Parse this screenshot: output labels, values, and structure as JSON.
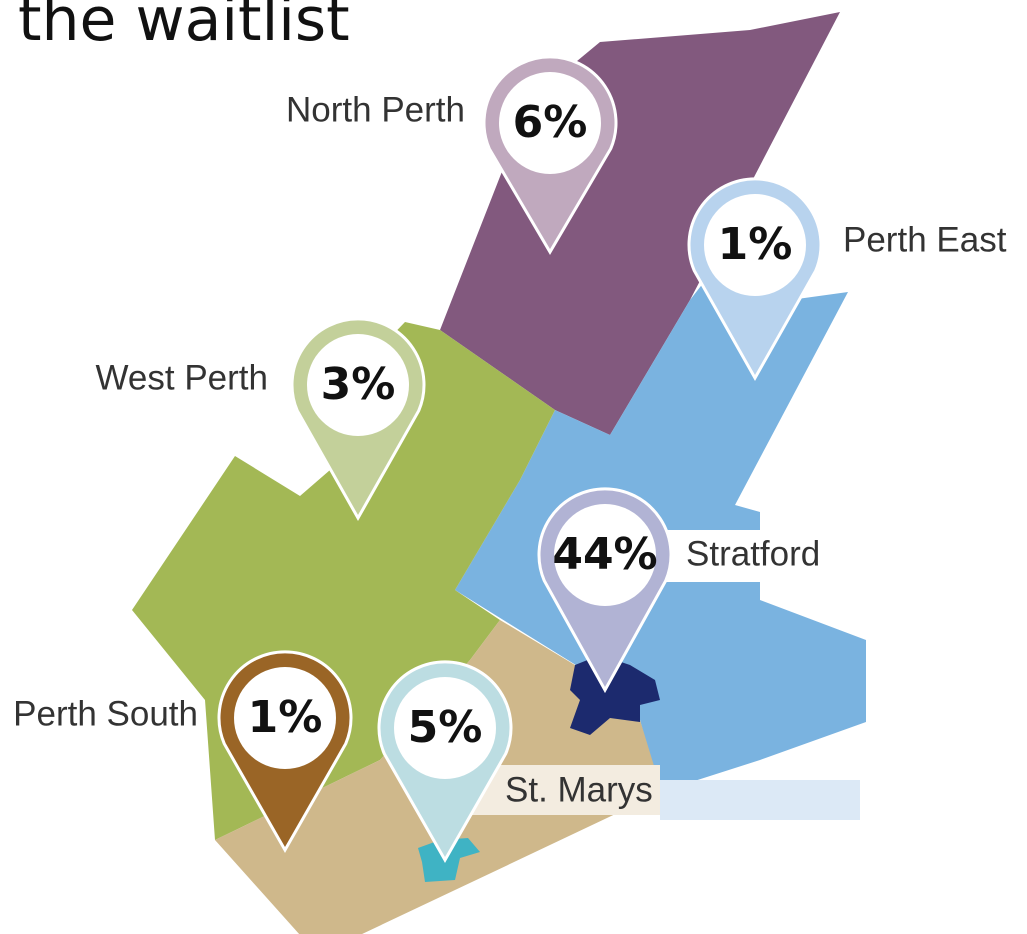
{
  "title": "the waitlist",
  "regions": [
    {
      "name": "North Perth",
      "value": "6%"
    },
    {
      "name": "Perth East",
      "value": "1%"
    },
    {
      "name": "West Perth",
      "value": "3%"
    },
    {
      "name": "Stratford",
      "value": "44%"
    },
    {
      "name": "Perth South",
      "value": "1%"
    },
    {
      "name": "St. Marys",
      "value": "5%"
    }
  ]
}
